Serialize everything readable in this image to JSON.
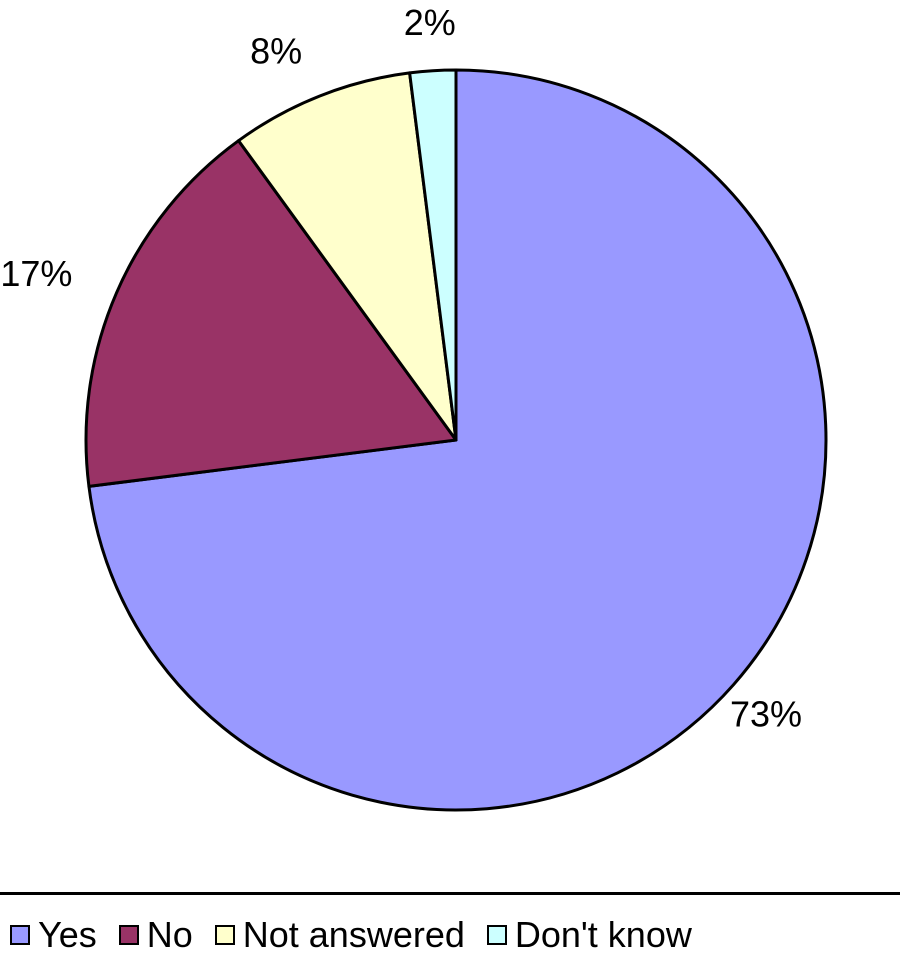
{
  "chart_data": {
    "type": "pie",
    "categories": [
      "Yes",
      "No",
      "Not answered",
      "Don't know"
    ],
    "values": [
      73,
      17,
      8,
      2
    ],
    "value_labels": [
      "73%",
      "17%",
      "8%",
      "2%"
    ],
    "colors": [
      "#9999ff",
      "#993366",
      "#ffffcc",
      "#ccffff"
    ],
    "start_angle_deg": 0,
    "direction": "clockwise",
    "legend_position": "bottom",
    "title": ""
  },
  "legend": {
    "items": [
      {
        "label": "Yes",
        "color": "#9999ff"
      },
      {
        "label": "No",
        "color": "#993366"
      },
      {
        "label": "Not answered",
        "color": "#ffffcc"
      },
      {
        "label": "Don't know",
        "color": "#ccffff"
      }
    ]
  }
}
